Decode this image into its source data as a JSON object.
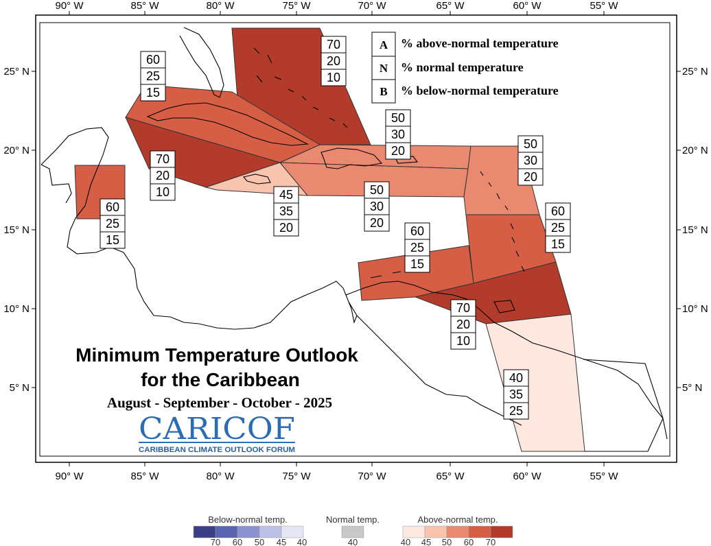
{
  "map": {
    "lon_labels": [
      "90° W",
      "85° W",
      "80° W",
      "75° W",
      "70° W",
      "65° W",
      "60° W",
      "55° W"
    ],
    "lat_labels": [
      "25° N",
      "20° N",
      "15° N",
      "10° N",
      "5° N"
    ]
  },
  "legend": {
    "items": [
      {
        "letter": "A",
        "text": "% above-normal temperature"
      },
      {
        "letter": "N",
        "text": "% normal temperature"
      },
      {
        "letter": "B",
        "text": "% below-normal temperature"
      }
    ]
  },
  "regions": [
    {
      "id": "bahamas",
      "probs": [
        "70",
        "20",
        "10"
      ],
      "color": "#b23b2c"
    },
    {
      "id": "cuba-east",
      "probs": [
        "60",
        "25",
        "15"
      ],
      "color": "#d55e44"
    },
    {
      "id": "cuba-west",
      "probs": [
        "70",
        "20",
        "10"
      ],
      "color": "#b23b2c"
    },
    {
      "id": "belize",
      "probs": [
        "60",
        "25",
        "15"
      ],
      "color": "#d55e44"
    },
    {
      "id": "jamaica",
      "probs": [
        "45",
        "35",
        "20"
      ],
      "color": "#f8c4ae"
    },
    {
      "id": "hispaniola-pr",
      "probs": [
        "50",
        "30",
        "20"
      ],
      "color": "#e98a70"
    },
    {
      "id": "hispaniola-south",
      "probs": [
        "50",
        "30",
        "20"
      ],
      "color": "#e98a70"
    },
    {
      "id": "northern-lesser-antilles",
      "probs": [
        "50",
        "30",
        "20"
      ],
      "color": "#e98a70"
    },
    {
      "id": "windward-islands",
      "probs": [
        "60",
        "25",
        "15"
      ],
      "color": "#d55e44"
    },
    {
      "id": "abc-islands",
      "probs": [
        "60",
        "25",
        "15"
      ],
      "color": "#d55e44"
    },
    {
      "id": "trinidad-tobago",
      "probs": [
        "70",
        "20",
        "10"
      ],
      "color": "#b23b2c"
    },
    {
      "id": "guianas",
      "probs": [
        "40",
        "35",
        "25"
      ],
      "color": "#fde8df"
    }
  ],
  "title": {
    "line1": "Minimum Temperature Outlook",
    "line2": "for the Caribbean",
    "period": "August - September - October - 2025"
  },
  "logo": {
    "name": "CARICOF",
    "tagline": "CARIBBEAN CLIMATE OUTLOOK FORUM"
  },
  "colorbar": {
    "below": {
      "title": "Below-normal temp.",
      "ticks": [
        "70",
        "60",
        "50",
        "45",
        "40"
      ],
      "colors": [
        "#3b3f85",
        "#5b64b0",
        "#8b92cf",
        "#bcc0e6",
        "#e4e6f6"
      ]
    },
    "normal": {
      "title": "Normal temp.",
      "ticks": [
        "40"
      ],
      "colors": [
        "#c8c8c8"
      ]
    },
    "above": {
      "title": "Above-normal temp.",
      "ticks": [
        "40",
        "45",
        "50",
        "60",
        "70"
      ],
      "colors": [
        "#fde8df",
        "#f8c4ae",
        "#e98a70",
        "#d55e44",
        "#b23b2c"
      ]
    }
  }
}
